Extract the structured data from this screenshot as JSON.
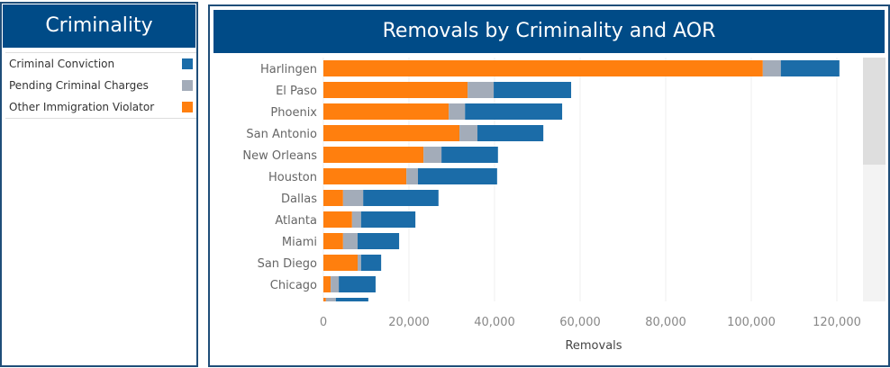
{
  "legend": {
    "title": "Criminality",
    "items": [
      {
        "label": "Criminal Conviction",
        "color": "#1b6ca8"
      },
      {
        "label": "Pending Criminal Charges",
        "color": "#a3acb9"
      },
      {
        "label": "Other Immigration Violator",
        "color": "#ff7f0e"
      }
    ]
  },
  "chart_data": {
    "type": "bar",
    "orientation": "horizontal",
    "stacked": true,
    "title": "Removals by Criminality and AOR",
    "xlabel": "Removals",
    "ylabel": "",
    "xlim": [
      0,
      126000
    ],
    "xticks": [
      "0",
      "20,000",
      "40,000",
      "60,000",
      "80,000",
      "100,000",
      "120,000"
    ],
    "grid": true,
    "categories": [
      "Harlingen",
      "El Paso",
      "Phoenix",
      "San Antonio",
      "New Orleans",
      "Houston",
      "Dallas",
      "Atlanta",
      "Miami",
      "San Diego",
      "Chicago",
      ""
    ],
    "series": [
      {
        "name": "Other Immigration Violator",
        "color": "#ff7f0e",
        "values": [
          102700,
          33700,
          29300,
          31800,
          23400,
          19400,
          4600,
          6700,
          4600,
          8000,
          1700,
          600
        ]
      },
      {
        "name": "Pending Criminal Charges",
        "color": "#a3acb9",
        "values": [
          4200,
          6100,
          3800,
          4200,
          4200,
          2700,
          4700,
          2100,
          3400,
          800,
          1900,
          2300
        ]
      },
      {
        "name": "Criminal Conviction",
        "color": "#1b6ca8",
        "values": [
          13700,
          18100,
          22700,
          15400,
          13200,
          18500,
          17600,
          12700,
          9700,
          4700,
          8600,
          7600
        ]
      }
    ]
  }
}
